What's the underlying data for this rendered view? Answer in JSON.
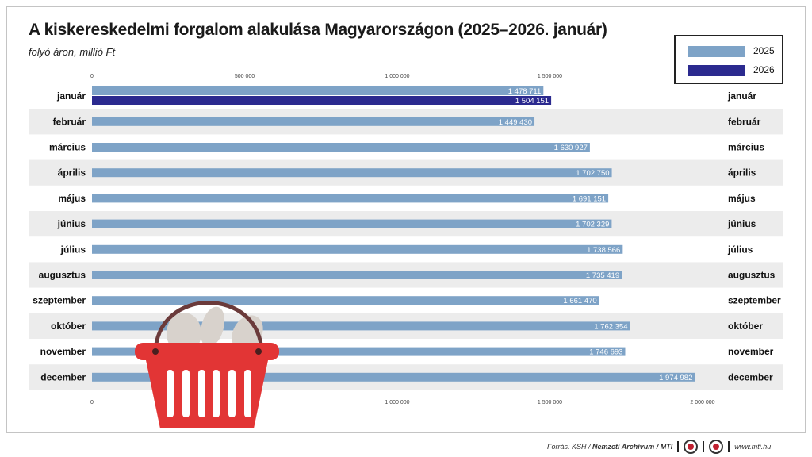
{
  "title": "A kiskereskedelmi forgalom alakulása Magyarországon (2025–2026. január)",
  "subtitle": "folyó áron, millió Ft",
  "legend": {
    "s2025": "2025",
    "s2026": "2026"
  },
  "colors": {
    "s2025": "#7ea3c7",
    "s2026": "#2b2a8f",
    "stripe": "#ececec",
    "basket": "#e23535"
  },
  "footer": {
    "source": "Forrás: KSH / ",
    "source_bold": "Nemzeti Archívum / MTI",
    "site": "www.mti.hu"
  },
  "icons": [
    "shopping-basket-icon",
    "mtva-logo-icon",
    "mti-logo-icon"
  ],
  "chart_data": {
    "type": "bar",
    "orientation": "horizontal",
    "title": "A kiskereskedelmi forgalom alakulása Magyarországon (2025–2026. január)",
    "subtitle": "folyó áron, millió Ft",
    "categories": [
      "január",
      "február",
      "március",
      "április",
      "május",
      "június",
      "július",
      "augusztus",
      "szeptember",
      "október",
      "november",
      "december"
    ],
    "series": [
      {
        "name": "2025",
        "values": [
          1478711,
          1449430,
          1630927,
          1702750,
          1691151,
          1702329,
          1738566,
          1735419,
          1661470,
          1762354,
          1746693,
          1974982
        ]
      },
      {
        "name": "2026",
        "values": [
          1504151,
          null,
          null,
          null,
          null,
          null,
          null,
          null,
          null,
          null,
          null,
          null
        ]
      }
    ],
    "value_labels": {
      "2025": [
        "1 478 711",
        "1 449 430",
        "1 630 927",
        "1 702 750",
        "1 691 151",
        "1 702 329",
        "1 738 566",
        "1 735 419",
        "1 661 470",
        "1 762 354",
        "1 746 693",
        "1 974 982"
      ],
      "2026": [
        "1 504 151"
      ]
    },
    "xlim": [
      0,
      2000000
    ],
    "ticks": [
      0,
      500000,
      1000000,
      1500000,
      2000000
    ],
    "top_tick_labels": [
      "0",
      "500 000",
      "1 000 000",
      "1 500 000"
    ],
    "bottom_tick_labels": [
      "0",
      "500 000",
      "1 000 000",
      "1 500 000",
      "2 000 000"
    ],
    "grid": false,
    "legend_position": "top-right"
  }
}
